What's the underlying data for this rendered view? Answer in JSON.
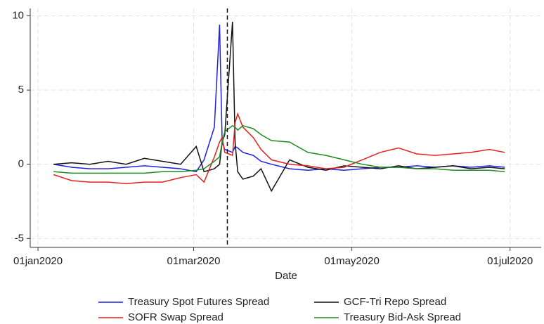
{
  "chart_data": {
    "type": "line",
    "xlabel": "Date",
    "x": [
      "2020-01-07",
      "2020-01-14",
      "2020-01-21",
      "2020-01-28",
      "2020-02-04",
      "2020-02-11",
      "2020-02-18",
      "2020-02-25",
      "2020-03-02",
      "2020-03-05",
      "2020-03-09",
      "2020-03-11",
      "2020-03-12",
      "2020-03-13",
      "2020-03-16",
      "2020-03-17",
      "2020-03-18",
      "2020-03-20",
      "2020-03-24",
      "2020-03-27",
      "2020-03-31",
      "2020-04-07",
      "2020-04-14",
      "2020-04-21",
      "2020-04-28",
      "2020-05-05",
      "2020-05-12",
      "2020-05-19",
      "2020-05-26",
      "2020-06-02",
      "2020-06-09",
      "2020-06-16",
      "2020-06-23",
      "2020-06-29"
    ],
    "series": [
      {
        "name": "Treasury Spot Futures Spread",
        "color": "#1f1fe6",
        "values": [
          0,
          -0.2,
          -0.3,
          -0.3,
          -0.2,
          -0.1,
          -0.2,
          -0.3,
          -0.5,
          0.3,
          2.5,
          9.4,
          1.5,
          1.0,
          0.8,
          1.2,
          1.1,
          0.8,
          0.6,
          0.2,
          0,
          -0.3,
          -0.4,
          -0.3,
          -0.4,
          -0.3,
          -0.2,
          -0.2,
          -0.1,
          -0.2,
          -0.1,
          -0.2,
          -0.1,
          -0.2
        ]
      },
      {
        "name": "GCF-Tri Repo Spread",
        "color": "#111111",
        "values": [
          0,
          0.1,
          0,
          0.2,
          0,
          0.4,
          0.2,
          0,
          1.2,
          -0.5,
          -0.3,
          0,
          1.5,
          2.0,
          9.6,
          1.5,
          -0.5,
          -1.0,
          -0.8,
          -0.3,
          -1.8,
          0.3,
          -0.2,
          -0.4,
          -0.1,
          -0.2,
          -0.3,
          -0.1,
          -0.3,
          -0.2,
          -0.1,
          -0.3,
          -0.2,
          -0.3
        ]
      },
      {
        "name": "SOFR Swap Spread",
        "color": "#e61e1e",
        "values": [
          -0.7,
          -1.1,
          -1.2,
          -1.2,
          -1.3,
          -1.2,
          -1.2,
          -0.9,
          -0.7,
          -1.2,
          0.5,
          1.5,
          1.8,
          0.8,
          0.6,
          2.8,
          3.4,
          2.5,
          1.8,
          1.0,
          0.3,
          0,
          -0.1,
          -0.3,
          -0.2,
          0.3,
          0.8,
          1.1,
          0.7,
          0.6,
          0.7,
          0.8,
          1.0,
          0.8
        ]
      },
      {
        "name": "Treasury Bid-Ask Spread",
        "color": "#1e8c1e",
        "values": [
          -0.5,
          -0.6,
          -0.6,
          -0.6,
          -0.6,
          -0.6,
          -0.5,
          -0.5,
          -0.4,
          -0.3,
          0.2,
          0.5,
          1.5,
          2.2,
          2.6,
          2.5,
          2.3,
          2.6,
          2.4,
          2.0,
          1.6,
          1.5,
          0.8,
          0.6,
          0.3,
          0,
          -0.2,
          -0.2,
          -0.3,
          -0.3,
          -0.4,
          -0.4,
          -0.4,
          -0.5
        ]
      }
    ],
    "vline": "2020-03-14",
    "xlim": [
      "2019-12-29",
      "2020-07-13"
    ],
    "xticks": [
      {
        "value": "2020-01-01",
        "label": "01jan2020"
      },
      {
        "value": "2020-03-01",
        "label": "01mar2020"
      },
      {
        "value": "2020-05-01",
        "label": "01may2020"
      },
      {
        "value": "2020-07-01",
        "label": "01jul2020"
      }
    ],
    "ylim": [
      -5.6,
      10.5
    ],
    "yticks": [
      -5,
      0,
      5,
      10
    ],
    "grid": true
  }
}
